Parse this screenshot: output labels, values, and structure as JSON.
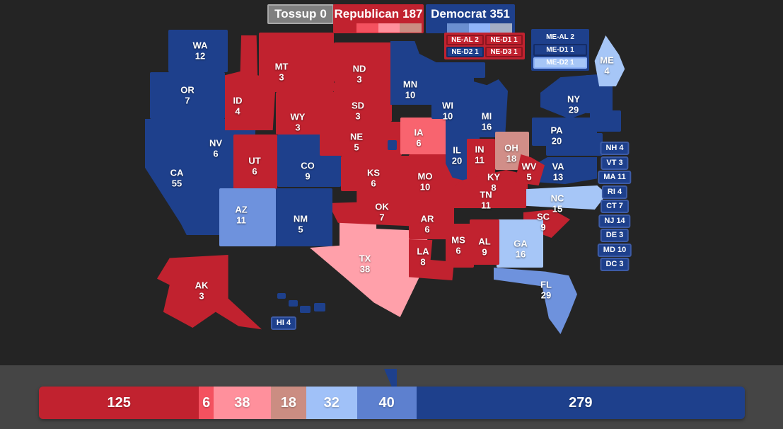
{
  "colors": {
    "solid_d": "#1e408c",
    "likely_d": "#6e92dd",
    "lean_d": "#a6c6f7",
    "solid_r": "#c1222f",
    "likely_r": "#f8646f",
    "lean_r": "#ffa0aa",
    "tilt_r": "#d18e88",
    "map_background": "#242424",
    "panel_background": "#454545"
  },
  "header": {
    "tossup_label": "Tossup",
    "tossup_count": "0",
    "republican_label": "Republican",
    "republican_count": "187",
    "democrat_label": "Democrat",
    "democrat_count": "351",
    "republican_swatches": [
      "#f4515f",
      "#ff909c",
      "#cb8d82"
    ],
    "democrat_swatches": [
      "#6b8fd0",
      "#8fb3f8",
      "#a3aec4"
    ]
  },
  "nebraska_districts": [
    {
      "label": "NE-AL 2",
      "fill": "#c1222f",
      "border": "#8c1520"
    },
    {
      "label": "NE-D1 1",
      "fill": "#c1222f",
      "border": "#8c1520"
    },
    {
      "label": "NE-D2 1",
      "fill": "#1e408c",
      "border": "#142c66"
    },
    {
      "label": "NE-D3 1",
      "fill": "#c1222f",
      "border": "#8c1520"
    }
  ],
  "maine_districts": [
    {
      "label": "ME-AL 2",
      "fill": "#1e408c",
      "border": "#1e408c"
    },
    {
      "label": "ME-D1 1",
      "fill": "#1e408c",
      "border": "#142c66"
    },
    {
      "label": "ME-D2 1",
      "fill": "#a6c6f7",
      "border": "#8fb3f8"
    }
  ],
  "east_list": [
    "NH 4",
    "VT 3",
    "MA 11",
    "RI 4",
    "CT 7",
    "NJ 14",
    "DE 3",
    "MD 10",
    "DC 3"
  ],
  "hawaii_box_label": "HI 4",
  "states": [
    {
      "id": "wa",
      "abbr": "WA",
      "ev": "12",
      "category": "solid_d"
    },
    {
      "id": "or",
      "abbr": "OR",
      "ev": "7",
      "category": "solid_d"
    },
    {
      "id": "ca",
      "abbr": "CA",
      "ev": "55",
      "category": "solid_d"
    },
    {
      "id": "nv",
      "abbr": "NV",
      "ev": "6",
      "category": "solid_d"
    },
    {
      "id": "id",
      "abbr": "ID",
      "ev": "4",
      "category": "solid_r"
    },
    {
      "id": "mt",
      "abbr": "MT",
      "ev": "3",
      "category": "solid_r"
    },
    {
      "id": "wy",
      "abbr": "WY",
      "ev": "3",
      "category": "solid_r"
    },
    {
      "id": "ut",
      "abbr": "UT",
      "ev": "6",
      "category": "solid_r"
    },
    {
      "id": "co",
      "abbr": "CO",
      "ev": "9",
      "category": "solid_d"
    },
    {
      "id": "az",
      "abbr": "AZ",
      "ev": "11",
      "category": "likely_d"
    },
    {
      "id": "nm",
      "abbr": "NM",
      "ev": "5",
      "category": "solid_d"
    },
    {
      "id": "tx",
      "abbr": "TX",
      "ev": "38",
      "category": "lean_r"
    },
    {
      "id": "nd",
      "abbr": "ND",
      "ev": "3",
      "category": "solid_r"
    },
    {
      "id": "sd",
      "abbr": "SD",
      "ev": "3",
      "category": "solid_r"
    },
    {
      "id": "ne",
      "abbr": "NE",
      "ev": "5",
      "category": "solid_r"
    },
    {
      "id": "ne-d2-map",
      "abbr": "",
      "ev": "",
      "category": "solid_d"
    },
    {
      "id": "ks",
      "abbr": "KS",
      "ev": "6",
      "category": "solid_r"
    },
    {
      "id": "ok",
      "abbr": "OK",
      "ev": "7",
      "category": "solid_r"
    },
    {
      "id": "mn",
      "abbr": "MN",
      "ev": "10",
      "category": "solid_d"
    },
    {
      "id": "ia",
      "abbr": "IA",
      "ev": "6",
      "category": "likely_r"
    },
    {
      "id": "mo",
      "abbr": "MO",
      "ev": "10",
      "category": "solid_r"
    },
    {
      "id": "ar",
      "abbr": "AR",
      "ev": "6",
      "category": "solid_r"
    },
    {
      "id": "la",
      "abbr": "LA",
      "ev": "8",
      "category": "solid_r"
    },
    {
      "id": "wi",
      "abbr": "WI",
      "ev": "10",
      "category": "solid_d"
    },
    {
      "id": "il",
      "abbr": "IL",
      "ev": "20",
      "category": "solid_d"
    },
    {
      "id": "ms",
      "abbr": "MS",
      "ev": "6",
      "category": "solid_r"
    },
    {
      "id": "mi-up",
      "abbr": "",
      "ev": "",
      "category": "solid_d"
    },
    {
      "id": "mi",
      "abbr": "MI",
      "ev": "16",
      "category": "solid_d"
    },
    {
      "id": "in",
      "abbr": "IN",
      "ev": "11",
      "category": "solid_r"
    },
    {
      "id": "oh",
      "abbr": "OH",
      "ev": "18",
      "category": "tilt_r"
    },
    {
      "id": "ky",
      "abbr": "KY",
      "ev": "8",
      "category": "solid_r"
    },
    {
      "id": "tn",
      "abbr": "TN",
      "ev": "11",
      "category": "solid_r"
    },
    {
      "id": "va",
      "abbr": "VA",
      "ev": "13",
      "category": "solid_d"
    },
    {
      "id": "wv",
      "abbr": "WV",
      "ev": "5",
      "category": "solid_r"
    },
    {
      "id": "nc",
      "abbr": "NC",
      "ev": "15",
      "category": "lean_d"
    },
    {
      "id": "sc",
      "abbr": "SC",
      "ev": "9",
      "category": "solid_r"
    },
    {
      "id": "ga",
      "abbr": "GA",
      "ev": "16",
      "category": "lean_d"
    },
    {
      "id": "al",
      "abbr": "AL",
      "ev": "9",
      "category": "solid_r"
    },
    {
      "id": "fl",
      "abbr": "FL",
      "ev": "29",
      "category": "likely_d"
    },
    {
      "id": "pa",
      "abbr": "PA",
      "ev": "20",
      "category": "solid_d"
    },
    {
      "id": "ny",
      "abbr": "NY",
      "ev": "29",
      "category": "solid_d"
    },
    {
      "id": "ne-blob-1",
      "abbr": "",
      "ev": "",
      "category": "solid_d"
    },
    {
      "id": "ne-blob-2",
      "abbr": "",
      "ev": "",
      "category": "solid_d"
    },
    {
      "id": "ne-blob-3",
      "abbr": "",
      "ev": "",
      "category": "solid_d"
    },
    {
      "id": "ne-blob-4",
      "abbr": "",
      "ev": "",
      "category": "solid_d"
    },
    {
      "id": "me",
      "abbr": "ME",
      "ev": "4",
      "category": "lean_d"
    },
    {
      "id": "ak",
      "abbr": "AK",
      "ev": "3",
      "category": "solid_r"
    },
    {
      "id": "hi-1",
      "abbr": "",
      "ev": "",
      "category": "solid_d"
    },
    {
      "id": "hi-2",
      "abbr": "",
      "ev": "",
      "category": "solid_d"
    },
    {
      "id": "hi-3",
      "abbr": "",
      "ev": "",
      "category": "solid_d"
    },
    {
      "id": "hi-4",
      "abbr": "",
      "ev": "",
      "category": "solid_d"
    }
  ],
  "result_bar": {
    "total_ev": 538,
    "win_threshold": 270,
    "segments": [
      {
        "value": 125,
        "label": "125",
        "color": "#c1222f"
      },
      {
        "value": 6,
        "label": "6",
        "color": "#f4515f"
      },
      {
        "value": 38,
        "label": "38",
        "color": "#ff909c"
      },
      {
        "value": 18,
        "label": "18",
        "color": "#cb8d82"
      },
      {
        "value": 32,
        "label": "32",
        "color": "#a0c1f8"
      },
      {
        "value": 40,
        "label": "40",
        "color": "#5d80cf"
      },
      {
        "value": 279,
        "label": "279",
        "color": "#1e408c"
      }
    ]
  }
}
